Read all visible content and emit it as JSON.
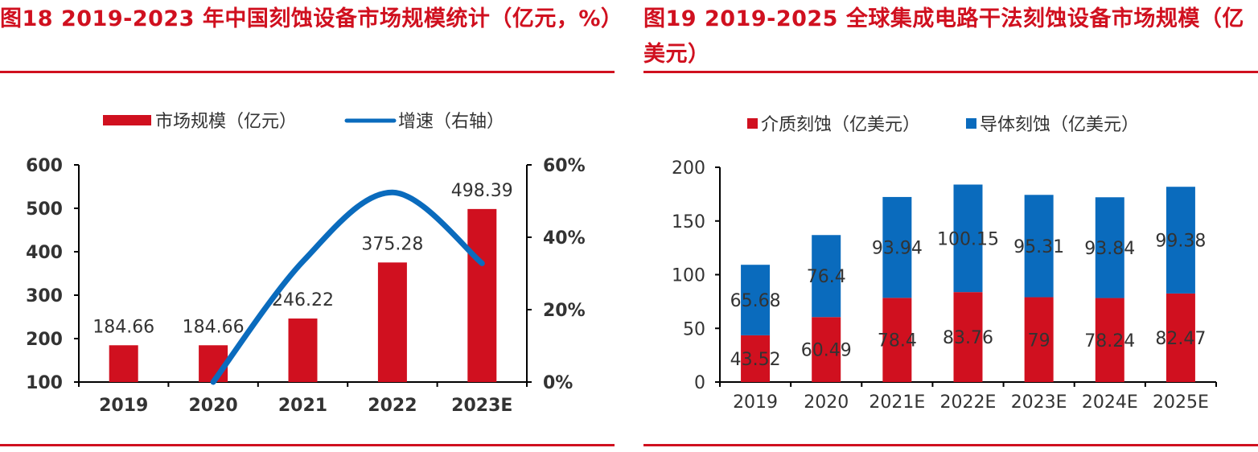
{
  "colors": {
    "red": "#d0101f",
    "blue": "#0a6bbd",
    "axis": "#000000",
    "label": "#333333"
  },
  "chart_data": [
    {
      "type": "bar",
      "title": "图18  2019-2023 年中国刻蚀设备市场规模统计（亿元，%）",
      "categories": [
        "2019",
        "2020",
        "2021",
        "2022",
        "2023E"
      ],
      "series": [
        {
          "name": "市场规模（亿元）",
          "type": "bar",
          "axis": "left",
          "values": [
            184.66,
            184.66,
            246.22,
            375.28,
            498.39
          ],
          "labels": [
            "184.66",
            "184.66",
            "246.22",
            "375.28",
            "498.39"
          ]
        },
        {
          "name": "增速（右轴）",
          "type": "line",
          "axis": "right",
          "values": [
            null,
            0,
            33.3,
            52.4,
            32.8
          ]
        }
      ],
      "ylim": [
        100,
        600
      ],
      "yticks": [
        "600",
        "500",
        "400",
        "300",
        "200",
        "100"
      ],
      "y2lim": [
        0,
        60
      ],
      "y2ticks": [
        "60%",
        "40%",
        "20%",
        "0%"
      ],
      "legend": "top-center",
      "xlabel": "",
      "ylabel": "",
      "grid": false
    },
    {
      "type": "bar",
      "stacked": true,
      "title": "图19  2019-2025 全球集成电路干法刻蚀设备市场规模（亿美元）",
      "categories": [
        "2019",
        "2020",
        "2021E",
        "2022E",
        "2023E",
        "2024E",
        "2025E"
      ],
      "series": [
        {
          "name": "介质刻蚀（亿美元）",
          "values": [
            43.52,
            60.49,
            78.4,
            83.76,
            79,
            78.24,
            82.47
          ],
          "labels": [
            "43.52",
            "60.49",
            "78.4",
            "83.76",
            "79",
            "78.24",
            "82.47"
          ]
        },
        {
          "name": "导体刻蚀（亿美元）",
          "values": [
            65.68,
            76.4,
            93.94,
            100.15,
            95.31,
            93.84,
            99.38
          ],
          "labels": [
            "65.68",
            "76.4",
            "93.94",
            "100.15",
            "95.31",
            "93.84",
            "99.38"
          ]
        }
      ],
      "ylim": [
        0,
        200
      ],
      "yticks": [
        "200",
        "150",
        "100",
        "50",
        "0"
      ],
      "legend": "top-center",
      "xlabel": "",
      "ylabel": "",
      "grid": false
    }
  ]
}
